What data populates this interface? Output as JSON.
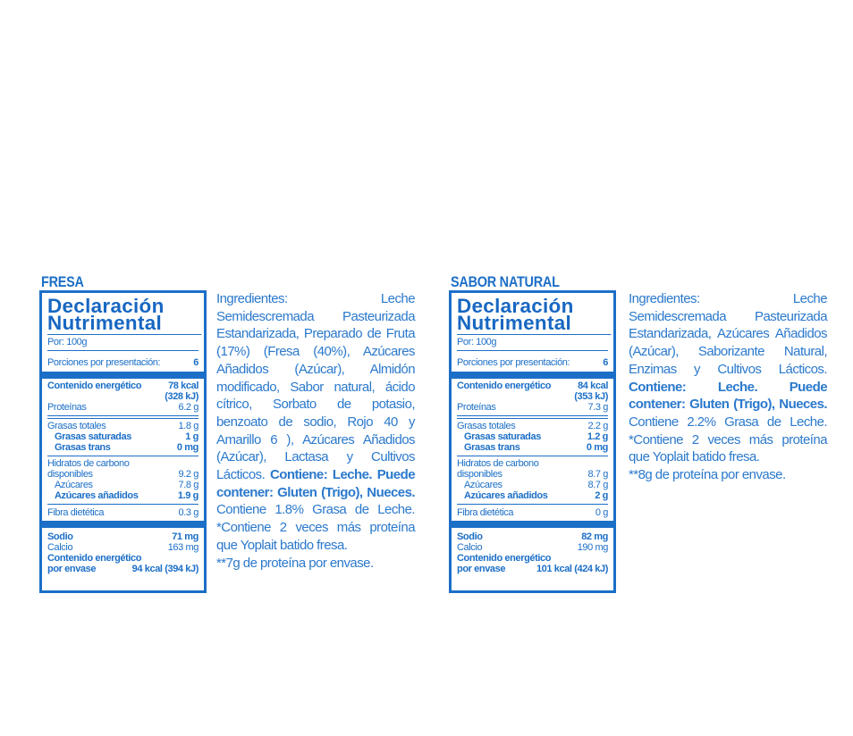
{
  "products": [
    {
      "flavor": "FRESA",
      "title1": "Declaración",
      "title2": "Nutrimental",
      "por": "Por: 100g",
      "porciones_label": "Porciones por presentación:",
      "porciones": "6",
      "energia_label": "Contenido energético",
      "energia_kcal": "78 kcal",
      "energia_kj": "(328 kJ)",
      "proteinas_label": "Proteínas",
      "proteinas": "6.2 g",
      "grasas_label": "Grasas totales",
      "grasas": "1.8 g",
      "saturadas_label": "Grasas saturadas",
      "saturadas": "1 g",
      "trans_label": "Grasas trans",
      "trans": "0 mg",
      "hidratos_label1": "Hidratos de carbono",
      "hidratos_label2": "disponibles",
      "hidratos": "9.2 g",
      "azucares_label": "Azúcares",
      "azucares": "7.8 g",
      "anadidos_label": "Azúcares añadidos",
      "anadidos": "1.9 g",
      "fibra_label": "Fibra dietética",
      "fibra": "0.3 g",
      "sodio_label": "Sodio",
      "sodio": "71 mg",
      "calcio_label": "Calcio",
      "calcio": "163 mg",
      "envase_label1": "Contenido energético",
      "envase_label2": "por envase",
      "envase": "94 kcal (394 kJ)",
      "ing1": "Ingredientes: Leche Semidescremada Pasteurizada Estandarizada, Preparado de Fruta (17%) (Fresa (40%), Azúcares Añadidos (Azúcar), Almidón modificado, Sabor natural, ácido cítrico, Sorbato de potasio, benzoato de sodio, Rojo 40 y Amarillo 6 ), Azúcares Añadidos (Azúcar), Lactasa y Cultivos Lácticos. ",
      "ing_bold": "Contiene: Leche. Puede contener: Gluten (Trigo), Nueces.",
      "ing2": " Contiene 1.8% Grasa de Leche. *Contiene 2 veces más proteína que Yoplait batido fresa.",
      "ing3": "**7g de proteína por envase."
    },
    {
      "flavor": "SABOR NATURAL",
      "title1": "Declaración",
      "title2": "Nutrimental",
      "por": "Por: 100g",
      "porciones_label": "Porciones por presentación:",
      "porciones": "6",
      "energia_label": "Contenido energético",
      "energia_kcal": "84 kcal",
      "energia_kj": "(353 kJ)",
      "proteinas_label": "Proteínas",
      "proteinas": "7.3 g",
      "grasas_label": "Grasas totales",
      "grasas": "2.2 g",
      "saturadas_label": "Grasas saturadas",
      "saturadas": "1.2 g",
      "trans_label": "Grasas trans",
      "trans": "0 mg",
      "hidratos_label1": "Hidratos de carbono",
      "hidratos_label2": "disponibles",
      "hidratos": "8.7 g",
      "azucares_label": "Azúcares",
      "azucares": "8.7 g",
      "anadidos_label": "Azúcares añadidos",
      "anadidos": "2 g",
      "fibra_label": "Fibra dietética",
      "fibra": "0 g",
      "sodio_label": "Sodio",
      "sodio": "82 mg",
      "calcio_label": "Calcio",
      "calcio": "190 mg",
      "envase_label1": "Contenido energético",
      "envase_label2": "por envase",
      "envase": "101 kcal (424 kJ)",
      "ing1": "Ingredientes: Leche Semidescremada Pasteurizada Estandarizada, Azúcares Añadidos (Azúcar), Saborizante Natural, Enzimas y Cultivos Lácticos. ",
      "ing_bold": "Contiene: Leche. Puede contener: Gluten (Trigo), Nueces.",
      "ing2": " Contiene 2.2% Grasa de Leche. *Contiene 2 veces más proteína que Yoplait batido fresa.",
      "ing3": "**8g de proteína por envase."
    }
  ],
  "colors": {
    "brand_blue": "#1c6fc7"
  }
}
